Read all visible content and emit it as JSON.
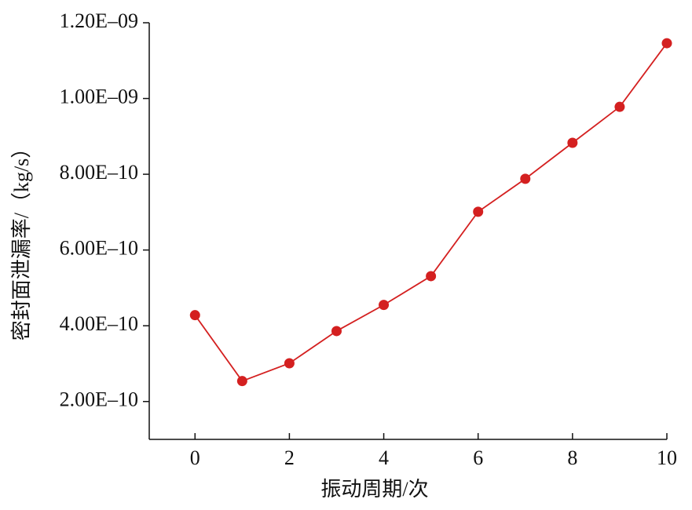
{
  "chart_data": {
    "type": "line",
    "x_label": "振动周期/次",
    "y_label": "密封面泄漏率/（kg/s）",
    "series": [
      {
        "color": "#d42020",
        "x": [
          0,
          1,
          2,
          3,
          4,
          5,
          6,
          7,
          8,
          9,
          10
        ],
        "values": [
          4.28e-10,
          2.54e-10,
          3.01e-10,
          3.86e-10,
          4.55e-10,
          5.31e-10,
          7.01e-10,
          7.88e-10,
          8.83e-10,
          9.78e-10,
          1.146e-09
        ]
      }
    ],
    "xlim": [
      -0.97,
      10
    ],
    "xticks": [
      0,
      2,
      4,
      6,
      8,
      10
    ],
    "ylim": [
      1e-10,
      1.2e-09
    ],
    "yticks": [
      {
        "value": 2e-10,
        "label": "2.00E–10"
      },
      {
        "value": 4e-10,
        "label": "4.00E–10"
      },
      {
        "value": 6e-10,
        "label": "6.00E–10"
      },
      {
        "value": 8e-10,
        "label": "8.00E–10"
      },
      {
        "value": 1e-09,
        "label": "1.00E–09"
      },
      {
        "value": 1.2e-09,
        "label": "1.20E–09"
      }
    ]
  }
}
